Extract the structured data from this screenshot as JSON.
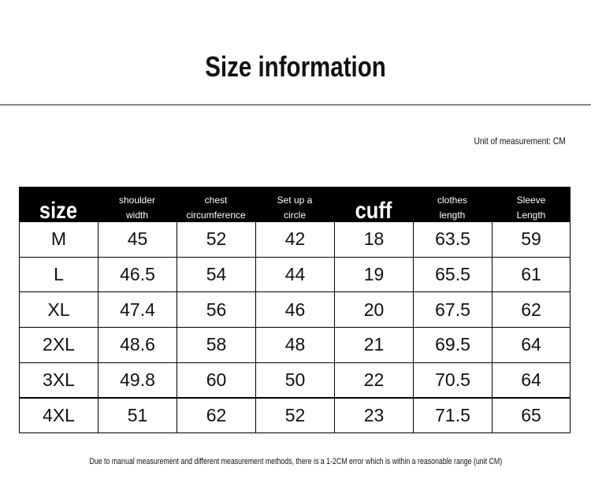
{
  "header": {
    "title": "Size information",
    "unit_note": "Unit of measurement: CM"
  },
  "table": {
    "columns": [
      [
        "size"
      ],
      [
        "shoulder",
        "width"
      ],
      [
        "chest",
        "circumference"
      ],
      [
        "Set up a",
        "circle"
      ],
      [
        "cuff"
      ],
      [
        "clothes",
        "length"
      ],
      [
        "Sleeve",
        "Length"
      ]
    ],
    "rows": [
      [
        "M",
        45,
        52,
        42,
        18,
        63.5,
        59
      ],
      [
        "L",
        46.5,
        54,
        44,
        19,
        65.5,
        61
      ],
      [
        "XL",
        47.4,
        56,
        46,
        20,
        67.5,
        62
      ],
      [
        "2XL",
        48.6,
        58,
        48,
        21,
        69.5,
        64
      ],
      [
        "3XL",
        49.8,
        60,
        50,
        22,
        70.5,
        64
      ],
      [
        "4XL",
        51,
        62,
        52,
        23,
        71.5,
        65
      ]
    ]
  },
  "footer": {
    "note": "Due to manual measurement and different measurement methods, there is a 1-2CM error which is within a reasonable range (unit CM)"
  }
}
